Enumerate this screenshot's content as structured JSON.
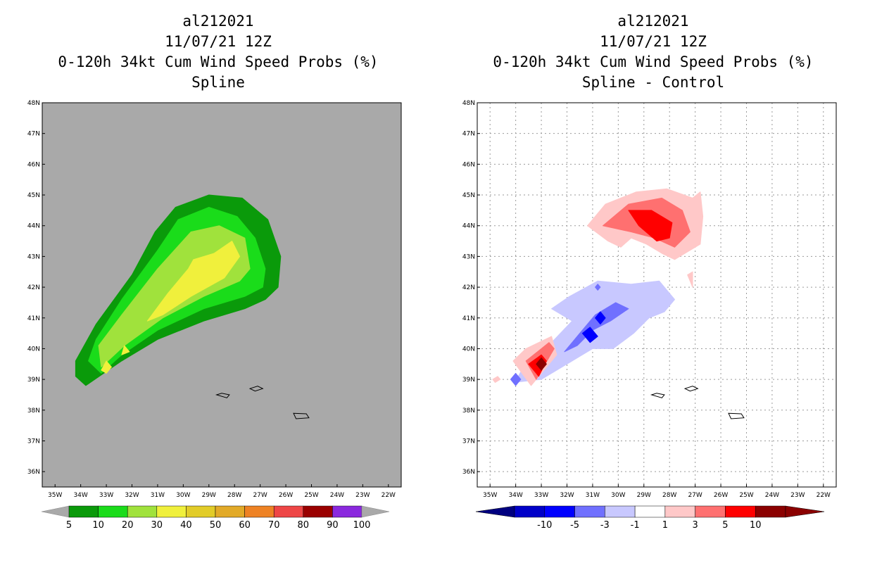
{
  "chart_data": [
    {
      "type": "heatmap",
      "title": [
        "al212021",
        "11/07/21 12Z",
        "0-120h 34kt Cum Wind Speed Probs (%)",
        "Spline"
      ],
      "xlabel": "",
      "ylabel": "",
      "x_ticks": [
        "35W",
        "34W",
        "33W",
        "32W",
        "31W",
        "30W",
        "29W",
        "28W",
        "27W",
        "26W",
        "25W",
        "24W",
        "23W",
        "22W"
      ],
      "y_ticks": [
        "36N",
        "37N",
        "38N",
        "39N",
        "40N",
        "41N",
        "42N",
        "43N",
        "44N",
        "45N",
        "46N",
        "47N",
        "48N"
      ],
      "xlim": [
        -35.5,
        -21.5
      ],
      "ylim": [
        35.5,
        48
      ],
      "grid": false,
      "background_color": "#a9a9a9",
      "colorbar": {
        "levels": [
          "5",
          "10",
          "20",
          "30",
          "40",
          "50",
          "60",
          "70",
          "80",
          "90",
          "100"
        ],
        "colors": [
          "#0a9a0a",
          "#1adc1a",
          "#a0e23c",
          "#f0f03c",
          "#e2cc28",
          "#e2aa28",
          "#ee8224",
          "#ee4646",
          "#9a0000",
          "#8a28de"
        ],
        "under_color": "#a9a9a9",
        "over_color": "#a9a9a9"
      },
      "contours": [
        {
          "level": "5-10",
          "color": "#0a9a0a",
          "polygon": [
            [
              -33.8,
              38.8
            ],
            [
              -34.2,
              39.1
            ],
            [
              -34.2,
              39.6
            ],
            [
              -33.4,
              40.8
            ],
            [
              -32,
              42.4
            ],
            [
              -31.1,
              43.8
            ],
            [
              -30.3,
              44.6
            ],
            [
              -29,
              45
            ],
            [
              -27.7,
              44.9
            ],
            [
              -26.7,
              44.2
            ],
            [
              -26.2,
              43
            ],
            [
              -26.3,
              42
            ],
            [
              -26.8,
              41.6
            ],
            [
              -27.6,
              41.3
            ],
            [
              -29.2,
              40.9
            ],
            [
              -31,
              40.3
            ],
            [
              -32.4,
              39.6
            ]
          ]
        },
        {
          "level": "10-20",
          "color": "#1adc1a",
          "polygon": [
            [
              -33.2,
              39.2
            ],
            [
              -33.7,
              39.6
            ],
            [
              -33.4,
              40.3
            ],
            [
              -32.4,
              41.6
            ],
            [
              -31,
              43.2
            ],
            [
              -30.2,
              44.2
            ],
            [
              -29,
              44.6
            ],
            [
              -27.9,
              44.3
            ],
            [
              -27.2,
              43.6
            ],
            [
              -26.8,
              42.6
            ],
            [
              -26.9,
              42
            ],
            [
              -27.6,
              41.7
            ],
            [
              -29.2,
              41.3
            ],
            [
              -31,
              40.6
            ],
            [
              -32.4,
              39.8
            ]
          ]
        },
        {
          "level": "20-30",
          "color": "#a0e23c",
          "polygon": [
            [
              -33.2,
              39.4
            ],
            [
              -33.3,
              40.1
            ],
            [
              -32.4,
              41.1
            ],
            [
              -31,
              42.6
            ],
            [
              -29.7,
              43.8
            ],
            [
              -28.6,
              44
            ],
            [
              -27.6,
              43.6
            ],
            [
              -27.4,
              42.6
            ],
            [
              -27.8,
              42.2
            ],
            [
              -29.2,
              41.7
            ],
            [
              -30.8,
              41
            ],
            [
              -32.3,
              40.1
            ]
          ]
        },
        {
          "level": "30-40",
          "color": "#f0f03c",
          "polygon": [
            [
              -31.4,
              40.9
            ],
            [
              -30.6,
              41.8
            ],
            [
              -29.8,
              42.6
            ],
            [
              -29.6,
              42.9
            ],
            [
              -28.8,
              43.1
            ],
            [
              -28.1,
              43.5
            ],
            [
              -27.8,
              43
            ],
            [
              -28.4,
              42.3
            ],
            [
              -29.7,
              41.7
            ],
            [
              -30.8,
              41.1
            ]
          ]
        },
        {
          "level": "30-40",
          "color": "#f0f03c",
          "polygon": [
            [
              -33.2,
              39.3
            ],
            [
              -33,
              39.6
            ],
            [
              -32.8,
              39.4
            ],
            [
              -33,
              39.2
            ]
          ]
        },
        {
          "level": "30-40",
          "color": "#f0f03c",
          "polygon": [
            [
              -32.3,
              40.1
            ],
            [
              -32.1,
              39.9
            ],
            [
              -32.4,
              39.8
            ]
          ]
        }
      ]
    },
    {
      "type": "heatmap",
      "title": [
        "al212021",
        "11/07/21 12Z",
        "0-120h 34kt Cum Wind Speed Probs (%)",
        "Spline - Control"
      ],
      "xlabel": "",
      "ylabel": "",
      "x_ticks": [
        "35W",
        "34W",
        "33W",
        "32W",
        "31W",
        "30W",
        "29W",
        "28W",
        "27W",
        "26W",
        "25W",
        "24W",
        "23W",
        "22W"
      ],
      "y_ticks": [
        "36N",
        "37N",
        "38N",
        "39N",
        "40N",
        "41N",
        "42N",
        "43N",
        "44N",
        "45N",
        "46N",
        "47N",
        "48N"
      ],
      "xlim": [
        -35.5,
        -21.5
      ],
      "ylim": [
        35.5,
        48
      ],
      "grid": true,
      "background_color": "#ffffff",
      "colorbar": {
        "levels": [
          "-10",
          "-5",
          "-3",
          "-1",
          "1",
          "3",
          "5",
          "10"
        ],
        "colors": [
          "#0000c8",
          "#0000ff",
          "#7070ff",
          "#c8c8ff",
          "#ffffff",
          "#ffc8c8",
          "#ff7070",
          "#ff0000",
          "#8b0000"
        ],
        "under_color": "#000080",
        "over_color": "#8b0000"
      },
      "contours": [
        {
          "level": "1-3",
          "color": "#ffc8c8",
          "polygon": [
            [
              -30.4,
              43.5
            ],
            [
              -31.2,
              44
            ],
            [
              -30.5,
              44.7
            ],
            [
              -29.3,
              45.1
            ],
            [
              -28.1,
              45.2
            ],
            [
              -27.1,
              44.9
            ],
            [
              -26.8,
              45.1
            ],
            [
              -26.7,
              44.3
            ],
            [
              -26.8,
              43.4
            ],
            [
              -27.8,
              42.9
            ],
            [
              -28.3,
              43.1
            ],
            [
              -28.9,
              43.4
            ],
            [
              -29.5,
              43.6
            ],
            [
              -29.9,
              43.3
            ]
          ]
        },
        {
          "level": "3-5",
          "color": "#ff7070",
          "polygon": [
            [
              -30.6,
              44
            ],
            [
              -29.6,
              44.7
            ],
            [
              -28.3,
              44.9
            ],
            [
              -27.5,
              44.5
            ],
            [
              -27.2,
              43.8
            ],
            [
              -27.8,
              43.3
            ],
            [
              -28.6,
              43.6
            ],
            [
              -29.5,
              43.8
            ]
          ]
        },
        {
          "level": "5-10",
          "color": "#ff0000",
          "polygon": [
            [
              -29.6,
              44.5
            ],
            [
              -28.7,
              44.5
            ],
            [
              -27.9,
              44.1
            ],
            [
              -28,
              43.6
            ],
            [
              -28.5,
              43.5
            ],
            [
              -29.2,
              44
            ]
          ]
        },
        {
          "level": "1-3",
          "color": "#ffc8c8",
          "polygon": [
            [
              -27.3,
              42.4
            ],
            [
              -27.1,
              42.5
            ],
            [
              -27.1,
              42
            ]
          ]
        },
        {
          "level": "-3--1",
          "color": "#c8c8ff",
          "polygon": [
            [
              -34.1,
              38.9
            ],
            [
              -33.9,
              39.1
            ],
            [
              -33.5,
              39.7
            ],
            [
              -32.6,
              40.2
            ],
            [
              -31.8,
              40.9
            ],
            [
              -32.6,
              41.3
            ],
            [
              -31.9,
              41.7
            ],
            [
              -30.8,
              42.2
            ],
            [
              -29.5,
              42.1
            ],
            [
              -28.4,
              42.2
            ],
            [
              -27.8,
              41.6
            ],
            [
              -28.2,
              41.2
            ],
            [
              -28.8,
              41
            ],
            [
              -29.4,
              40.5
            ],
            [
              -30.2,
              40
            ],
            [
              -31,
              40
            ],
            [
              -31.8,
              39.6
            ],
            [
              -33,
              39
            ]
          ]
        },
        {
          "level": "-5--3",
          "color": "#7070ff",
          "polygon": [
            [
              -32.1,
              39.9
            ],
            [
              -31.5,
              40.5
            ],
            [
              -30.9,
              41.1
            ],
            [
              -30.1,
              41.5
            ],
            [
              -29.6,
              41.3
            ],
            [
              -30.3,
              40.9
            ],
            [
              -31,
              40.6
            ],
            [
              -31.6,
              40.1
            ]
          ]
        },
        {
          "level": "-10--5",
          "color": "#0000ff",
          "polygon": [
            [
              -31.4,
              40.5
            ],
            [
              -31.1,
              40.7
            ],
            [
              -30.8,
              40.4
            ],
            [
              -31.1,
              40.2
            ]
          ]
        },
        {
          "level": "-10--5",
          "color": "#0000ff",
          "polygon": [
            [
              -30.9,
              41
            ],
            [
              -30.7,
              41.2
            ],
            [
              -30.5,
              41
            ],
            [
              -30.7,
              40.8
            ]
          ]
        },
        {
          "level": "-5--3",
          "color": "#7070ff",
          "polygon": [
            [
              -34.2,
              39
            ],
            [
              -34,
              39.2
            ],
            [
              -33.8,
              39
            ],
            [
              -34,
              38.8
            ]
          ]
        },
        {
          "level": "-5--3",
          "color": "#7070ff",
          "polygon": [
            [
              -30.9,
              42
            ],
            [
              -30.8,
              42.1
            ],
            [
              -30.7,
              42
            ],
            [
              -30.8,
              41.9
            ]
          ]
        },
        {
          "level": "1-3",
          "color": "#ffc8c8",
          "polygon": [
            [
              -33.4,
              38.8
            ],
            [
              -34.1,
              39.6
            ],
            [
              -33.6,
              40
            ],
            [
              -32.6,
              40.4
            ],
            [
              -32.4,
              39.8
            ]
          ]
        },
        {
          "level": "3-5",
          "color": "#ff7070",
          "polygon": [
            [
              -33.2,
              39
            ],
            [
              -33.6,
              39.6
            ],
            [
              -32.7,
              40.2
            ],
            [
              -32.5,
              40
            ]
          ]
        },
        {
          "level": "5-10",
          "color": "#ff0000",
          "polygon": [
            [
              -33.1,
              39.1
            ],
            [
              -33.5,
              39.5
            ],
            [
              -33,
              39.8
            ],
            [
              -32.8,
              39.6
            ]
          ]
        },
        {
          "level": "10+",
          "color": "#8b0000",
          "polygon": [
            [
              -33,
              39.3
            ],
            [
              -33.2,
              39.5
            ],
            [
              -33,
              39.7
            ],
            [
              -32.8,
              39.5
            ]
          ]
        },
        {
          "level": "1-3",
          "color": "#ffc8c8",
          "polygon": [
            [
              -34.8,
              38.9
            ],
            [
              -34.6,
              39
            ],
            [
              -34.7,
              39.1
            ],
            [
              -34.9,
              39
            ]
          ]
        }
      ]
    }
  ],
  "islands": [
    [
      [
        -28.2,
        38.5
      ],
      [
        -28.5,
        38.55
      ],
      [
        -28.7,
        38.5
      ],
      [
        -28.3,
        38.4
      ]
    ],
    [
      [
        -27.4,
        38.7
      ],
      [
        -27.1,
        38.78
      ],
      [
        -26.9,
        38.7
      ],
      [
        -27.2,
        38.62
      ]
    ],
    [
      [
        -25.7,
        37.9
      ],
      [
        -25.2,
        37.88
      ],
      [
        -25.1,
        37.75
      ],
      [
        -25.6,
        37.72
      ]
    ]
  ]
}
